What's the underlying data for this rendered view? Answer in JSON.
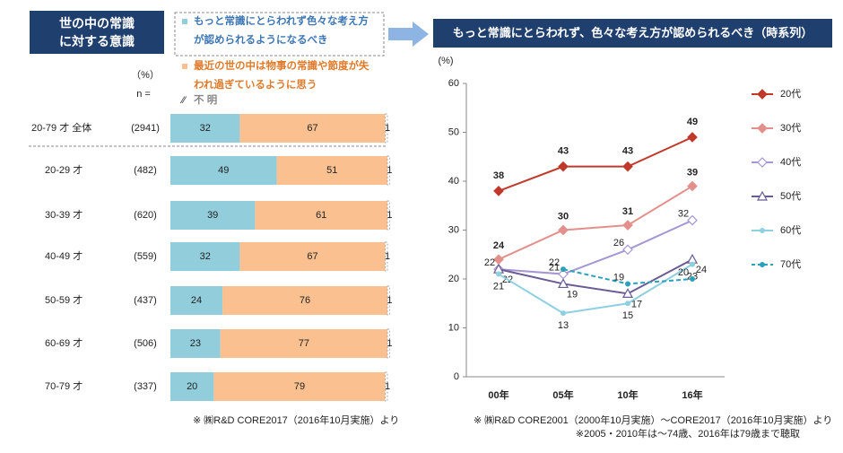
{
  "chart_data": [
    {
      "type": "bar",
      "orientation": "horizontal",
      "stacked": true,
      "title": "世の中の常識に対する意識",
      "unit_label": "（%）",
      "n_label": "n =",
      "categories": [
        "20-79 才 全体",
        "20-29 才",
        "30-39 才",
        "40-49 才",
        "50-59 才",
        "60-69 才",
        "70-79 才"
      ],
      "n": [
        {
          "value": 2941,
          "label": "(2941)"
        },
        {
          "value": 482,
          "label": "(482)"
        },
        {
          "value": 620,
          "label": "(620)"
        },
        {
          "value": 559,
          "label": "(559)"
        },
        {
          "value": 437,
          "label": "(437)"
        },
        {
          "value": 506,
          "label": "(506)"
        },
        {
          "value": 337,
          "label": "(337)"
        }
      ],
      "series": [
        {
          "name": "もっと常識にとらわれず色々な考え方が認められるようになるべき",
          "color": "#92cddc",
          "text_color": "#3d76b3",
          "values": [
            32,
            49,
            39,
            32,
            24,
            23,
            20
          ]
        },
        {
          "name": "最近の世の中は物事の常識や節度が失われ過ぎているように思う",
          "color": "#fac090",
          "text_color": "#e07a2a",
          "values": [
            67,
            51,
            61,
            67,
            76,
            77,
            79
          ]
        },
        {
          "name": "不 明",
          "color": "#ffffff",
          "text_color": "#888888",
          "values": [
            1,
            1,
            1,
            1,
            1,
            1,
            1
          ]
        }
      ],
      "xlim": [
        0,
        100
      ],
      "note": "※ ㈱R&D CORE2017（2016年10月実施）より"
    },
    {
      "type": "line",
      "title": "もっと常識にとらわれず、色々な考え方が認められるべき（時系列）",
      "y_label": "(%)",
      "categories": [
        "00年",
        "05年",
        "10年",
        "16年"
      ],
      "series": [
        {
          "name": "20代",
          "color": "#c0392b",
          "marker": "diamond",
          "filled": true,
          "dash": false,
          "values": [
            38,
            43,
            43,
            49
          ]
        },
        {
          "name": "30代",
          "color": "#e3908c",
          "marker": "diamond",
          "filled": true,
          "dash": false,
          "values": [
            24,
            30,
            31,
            39
          ]
        },
        {
          "name": "40代",
          "color": "#a597d3",
          "marker": "diamond",
          "filled": false,
          "dash": false,
          "values": [
            22,
            21,
            26,
            32
          ]
        },
        {
          "name": "50代",
          "color": "#6b5b95",
          "marker": "triangle",
          "filled": false,
          "dash": false,
          "values": [
            22,
            19,
            17,
            24
          ]
        },
        {
          "name": "60代",
          "color": "#8fd0e0",
          "marker": "dot",
          "filled": true,
          "dash": false,
          "values": [
            21,
            13,
            15,
            23
          ]
        },
        {
          "name": "70代",
          "color": "#2aa0bb",
          "marker": "dot",
          "filled": true,
          "dash": true,
          "values": [
            null,
            22,
            19,
            20
          ]
        }
      ],
      "ylim": [
        0,
        60
      ],
      "yticks": [
        0,
        10,
        20,
        30,
        40,
        50,
        60
      ],
      "legend": "right",
      "notes": [
        "※ ㈱R&D CORE2001（2000年10月実施）～CORE2017（2016年10月実施）より",
        "※2005・2010年は～74歳、2016年は79歳まで聴取"
      ]
    }
  ]
}
